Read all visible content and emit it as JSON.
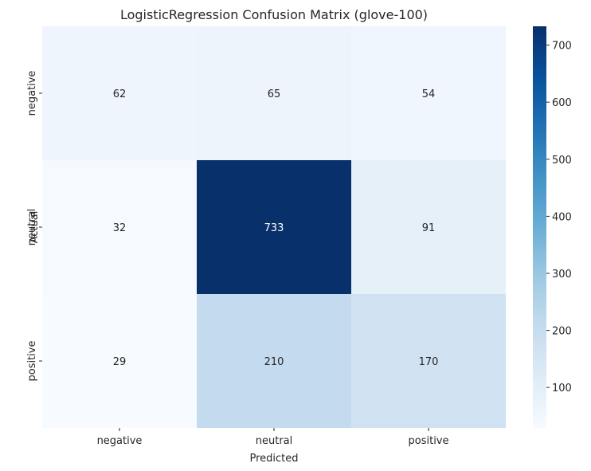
{
  "chart_data": {
    "type": "heatmap",
    "title": "LogisticRegression Confusion Matrix (glove-100)",
    "xlabel": "Predicted",
    "ylabel": "Actual",
    "x_categories": [
      "negative",
      "neutral",
      "positive"
    ],
    "y_categories": [
      "negative",
      "neutral",
      "positive"
    ],
    "values": [
      [
        62,
        65,
        54
      ],
      [
        32,
        733,
        91
      ],
      [
        29,
        210,
        170
      ]
    ],
    "colormap": "Blues",
    "colorbar": {
      "min": 29,
      "max": 733,
      "ticks": [
        100,
        200,
        300,
        400,
        500,
        600,
        700
      ]
    }
  }
}
